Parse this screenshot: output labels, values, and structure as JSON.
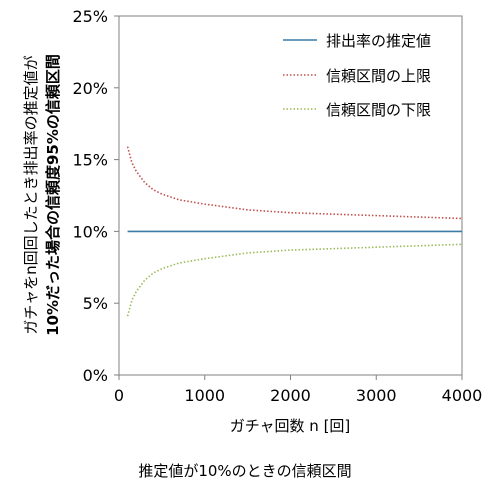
{
  "chart_data": {
    "type": "line",
    "caption": "推定値が10%のときの信頼区間",
    "xlabel": "ガチャ回数 n [回]",
    "ylabel": [
      "ガチャをn回回したとき排出率の推定値が",
      "10%だった場合の信頼度95%の信頼区間"
    ],
    "xlim": [
      0,
      4000
    ],
    "ylim": [
      0,
      25
    ],
    "x_ticks": [
      0,
      1000,
      2000,
      3000,
      4000
    ],
    "x_tick_labels": [
      "0",
      "1000",
      "2000",
      "3000",
      "4000"
    ],
    "y_ticks": [
      0,
      5,
      10,
      15,
      20,
      25
    ],
    "y_tick_labels": [
      "0%",
      "5%",
      "10%",
      "15%",
      "20%",
      "25%"
    ],
    "grid": false,
    "legend_position": "top-right",
    "series": [
      {
        "name": "排出率の推定値",
        "style": "solid",
        "color": "#3a7ca5",
        "x": [
          100,
          4000
        ],
        "y": [
          10.0,
          10.0
        ]
      },
      {
        "name": "信頼区間の上限",
        "style": "dotted",
        "color": "#c0504d",
        "x": [
          100,
          150,
          200,
          300,
          400,
          500,
          700,
          1000,
          1500,
          2000,
          2500,
          3000,
          3500,
          4000
        ],
        "y": [
          15.9,
          14.8,
          14.2,
          13.4,
          12.9,
          12.6,
          12.2,
          11.9,
          11.5,
          11.3,
          11.2,
          11.1,
          11.0,
          10.9
        ]
      },
      {
        "name": "信頼区間の下限",
        "style": "dotted",
        "color": "#9bbb59",
        "x": [
          100,
          150,
          200,
          300,
          400,
          500,
          700,
          1000,
          1500,
          2000,
          2500,
          3000,
          3500,
          4000
        ],
        "y": [
          4.1,
          5.2,
          5.8,
          6.6,
          7.1,
          7.4,
          7.8,
          8.1,
          8.5,
          8.7,
          8.8,
          8.9,
          9.0,
          9.1
        ]
      }
    ]
  }
}
